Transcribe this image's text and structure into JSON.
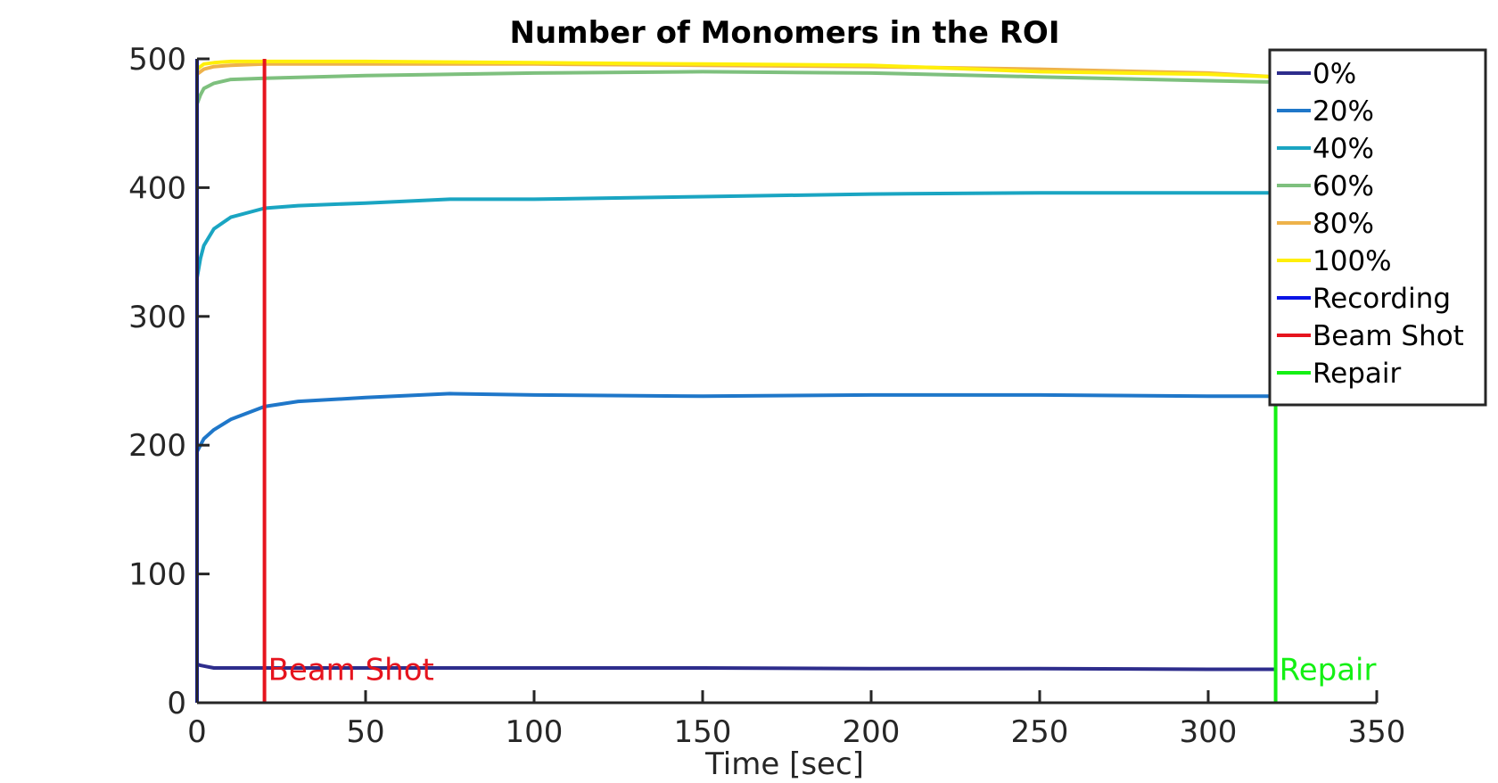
{
  "chart_data": {
    "type": "line",
    "title": "Number of Monomers in the ROI",
    "xlabel": "Time [sec]",
    "ylabel": "",
    "xlim": [
      0,
      350
    ],
    "ylim": [
      0,
      500
    ],
    "xticks": [
      0,
      50,
      100,
      150,
      200,
      250,
      300,
      350
    ],
    "yticks": [
      0,
      100,
      200,
      300,
      400,
      500
    ],
    "grid": false,
    "legend_position": "top-right (outside plot area)",
    "series": [
      {
        "name": "0%",
        "color": "#2e2d8c",
        "x": [
          0,
          1,
          3,
          5,
          10,
          20,
          50,
          100,
          150,
          200,
          250,
          300,
          320
        ],
        "y": [
          30,
          29,
          28,
          27,
          27,
          27,
          27,
          27,
          27,
          26.5,
          26.5,
          26,
          26
        ]
      },
      {
        "name": "20%",
        "color": "#1f77c9",
        "x": [
          0,
          1,
          2,
          5,
          10,
          20,
          30,
          50,
          75,
          100,
          150,
          200,
          250,
          300,
          320
        ],
        "y": [
          195,
          200,
          205,
          212,
          220,
          230,
          234,
          237,
          240,
          239,
          238,
          239,
          239,
          238,
          238
        ]
      },
      {
        "name": "40%",
        "color": "#1aa5c2",
        "x": [
          0,
          1,
          2,
          5,
          10,
          20,
          30,
          50,
          75,
          100,
          150,
          200,
          250,
          300,
          320
        ],
        "y": [
          330,
          345,
          355,
          368,
          377,
          384,
          386,
          388,
          391,
          391,
          393,
          395,
          396,
          396,
          396
        ]
      },
      {
        "name": "60%",
        "color": "#7ec07e",
        "x": [
          0,
          1,
          2,
          5,
          10,
          20,
          50,
          100,
          150,
          200,
          250,
          300,
          320
        ],
        "y": [
          465,
          472,
          477,
          481,
          484,
          485,
          487,
          489,
          490,
          489,
          486,
          483,
          482
        ]
      },
      {
        "name": "80%",
        "color": "#eeb24a",
        "x": [
          0,
          1,
          2,
          5,
          10,
          20,
          50,
          100,
          150,
          200,
          250,
          300,
          320
        ],
        "y": [
          488,
          490,
          492,
          494,
          495,
          496,
          496,
          496,
          495,
          494,
          492,
          489,
          486
        ]
      },
      {
        "name": "100%",
        "color": "#ffef0a",
        "x": [
          0,
          1,
          2,
          5,
          10,
          20,
          50,
          100,
          150,
          200,
          250,
          300,
          320
        ],
        "y": [
          492,
          494,
          496,
          497,
          498,
          498,
          498,
          497,
          496,
          495,
          490,
          488,
          486
        ]
      },
      {
        "name": "Recording",
        "color": "#0a14e6",
        "x": [
          0,
          0
        ],
        "y": [
          0,
          500
        ]
      },
      {
        "name": "Beam Shot",
        "color": "#e6141e",
        "x": [
          20,
          20
        ],
        "y": [
          0,
          500
        ]
      },
      {
        "name": "Repair",
        "color": "#14f014",
        "x": [
          320,
          320
        ],
        "y": [
          0,
          240
        ]
      }
    ],
    "annotations": [
      {
        "text": "Beam Shot",
        "x": 20,
        "y": 26,
        "color": "#e6141e"
      },
      {
        "text": "Repair",
        "x": 320,
        "y": 26,
        "color": "#14f014"
      }
    ]
  }
}
